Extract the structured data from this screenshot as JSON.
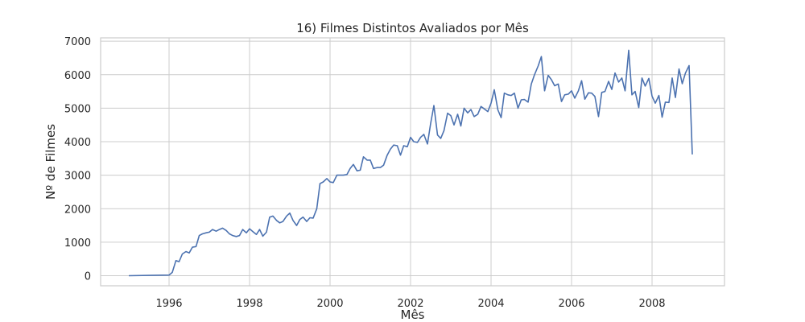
{
  "chart_data": {
    "type": "line",
    "title": "16) Filmes Distintos Avaliados por Mês",
    "xlabel": "Mês",
    "ylabel": "Nº de Filmes",
    "xlim": [
      1994.3,
      2009.8
    ],
    "ylim": [
      -300,
      7100
    ],
    "x_ticks": [
      1996,
      1998,
      2000,
      2002,
      2004,
      2006,
      2008
    ],
    "y_ticks": [
      0,
      1000,
      2000,
      3000,
      4000,
      5000,
      6000,
      7000
    ],
    "grid": true,
    "color": "#4c72b0",
    "series": [
      {
        "x": [
          1995.0,
          1995.5,
          1996.0,
          1996.08,
          1996.17,
          1996.25,
          1996.33,
          1996.42,
          1996.5,
          1996.58,
          1996.67,
          1996.75,
          1996.83,
          1996.92,
          1997.0,
          1997.08,
          1997.17,
          1997.25,
          1997.33,
          1997.42,
          1997.5,
          1997.58,
          1997.67,
          1997.75,
          1997.83,
          1997.92,
          1998.0,
          1998.08,
          1998.17,
          1998.25,
          1998.33,
          1998.42,
          1998.5,
          1998.58,
          1998.67,
          1998.75,
          1998.83,
          1998.92,
          1999.0,
          1999.08,
          1999.17,
          1999.25,
          1999.33,
          1999.42,
          1999.5,
          1999.58,
          1999.67,
          1999.75,
          1999.83,
          1999.92,
          2000.0,
          2000.08,
          2000.17,
          2000.25,
          2000.33,
          2000.42,
          2000.5,
          2000.58,
          2000.67,
          2000.75,
          2000.83,
          2000.92,
          2001.0,
          2001.08,
          2001.17,
          2001.25,
          2001.33,
          2001.42,
          2001.5,
          2001.58,
          2001.67,
          2001.75,
          2001.83,
          2001.92,
          2002.0,
          2002.08,
          2002.17,
          2002.25,
          2002.33,
          2002.42,
          2002.5,
          2002.58,
          2002.67,
          2002.75,
          2002.83,
          2002.92,
          2003.0,
          2003.08,
          2003.17,
          2003.25,
          2003.33,
          2003.42,
          2003.5,
          2003.58,
          2003.67,
          2003.75,
          2003.83,
          2003.92,
          2004.0,
          2004.08,
          2004.17,
          2004.25,
          2004.33,
          2004.42,
          2004.5,
          2004.58,
          2004.67,
          2004.75,
          2004.83,
          2004.92,
          2005.0,
          2005.08,
          2005.17,
          2005.25,
          2005.33,
          2005.42,
          2005.5,
          2005.58,
          2005.67,
          2005.75,
          2005.83,
          2005.92,
          2006.0,
          2006.08,
          2006.17,
          2006.25,
          2006.33,
          2006.42,
          2006.5,
          2006.58,
          2006.67,
          2006.75,
          2006.83,
          2006.92,
          2007.0,
          2007.08,
          2007.17,
          2007.25,
          2007.33,
          2007.42,
          2007.5,
          2007.58,
          2007.67,
          2007.75,
          2007.83,
          2007.92,
          2008.0,
          2008.08,
          2008.17,
          2008.25,
          2008.33,
          2008.42,
          2008.5,
          2008.58,
          2008.67,
          2008.75,
          2008.83,
          2008.92,
          2009.0
        ],
        "y": [
          0,
          10,
          20,
          100,
          450,
          420,
          650,
          720,
          680,
          850,
          870,
          1200,
          1250,
          1280,
          1300,
          1380,
          1330,
          1380,
          1420,
          1350,
          1250,
          1200,
          1170,
          1200,
          1380,
          1280,
          1400,
          1320,
          1230,
          1380,
          1180,
          1300,
          1750,
          1780,
          1650,
          1580,
          1620,
          1780,
          1870,
          1650,
          1500,
          1680,
          1750,
          1620,
          1730,
          1720,
          2000,
          2750,
          2800,
          2900,
          2800,
          2780,
          3000,
          3000,
          3000,
          3020,
          3200,
          3320,
          3130,
          3150,
          3550,
          3450,
          3450,
          3200,
          3230,
          3230,
          3300,
          3600,
          3780,
          3900,
          3880,
          3600,
          3880,
          3850,
          4130,
          4000,
          3980,
          4130,
          4220,
          3930,
          4550,
          5080,
          4200,
          4100,
          4330,
          4850,
          4780,
          4500,
          4820,
          4470,
          5000,
          4860,
          4960,
          4750,
          4820,
          5050,
          4980,
          4900,
          5150,
          5550,
          4950,
          4720,
          5450,
          5400,
          5380,
          5450,
          5000,
          5250,
          5260,
          5180,
          5720,
          6000,
          6260,
          6540,
          5520,
          5980,
          5850,
          5670,
          5720,
          5200,
          5400,
          5420,
          5520,
          5300,
          5520,
          5820,
          5270,
          5460,
          5450,
          5350,
          4750,
          5470,
          5500,
          5800,
          5560,
          6050,
          5780,
          5900,
          5520,
          6730,
          5400,
          5500,
          5020,
          5900,
          5660,
          5890,
          5360,
          5150,
          5380,
          4730,
          5180,
          5170,
          5900,
          5320,
          6170,
          5730,
          6050,
          6270,
          3620
        ]
      }
    ]
  }
}
